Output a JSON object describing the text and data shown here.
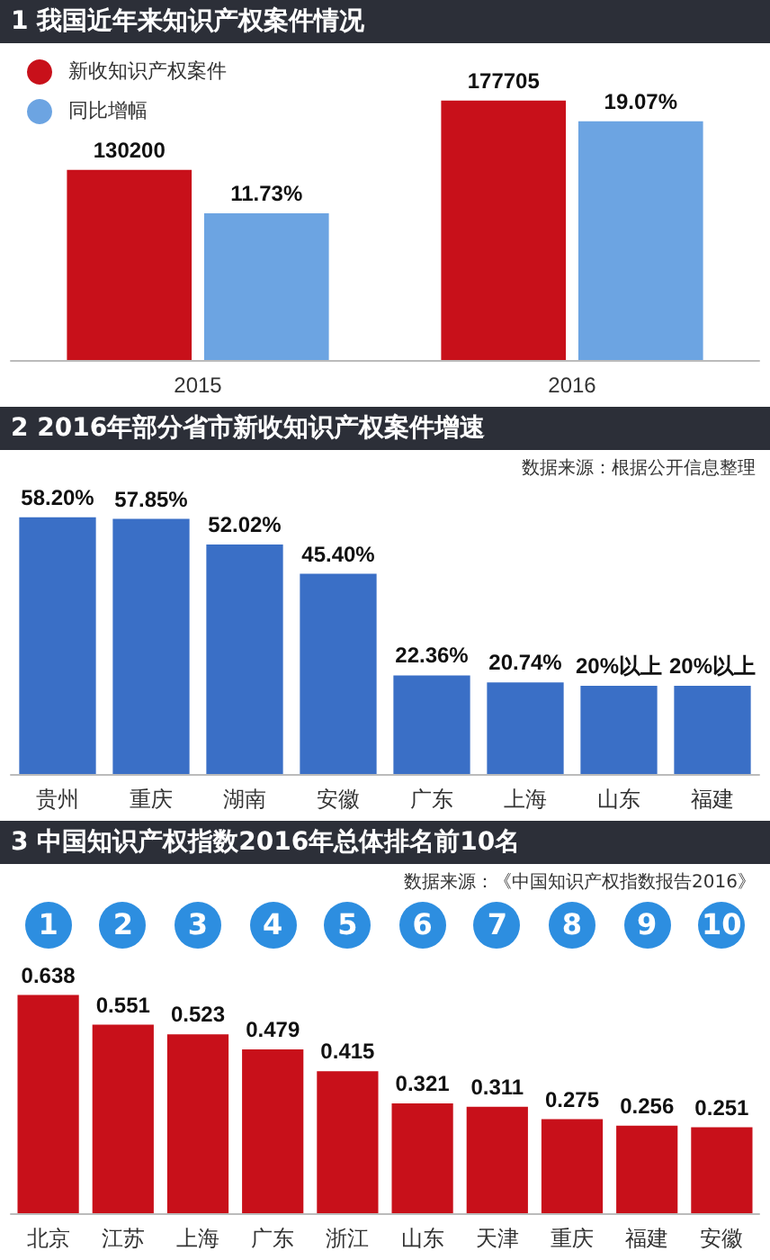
{
  "chart_data": [
    {
      "type": "bar",
      "title": "1 我国近年来知识产权案件情况",
      "categories": [
        "2015",
        "2016"
      ],
      "series": [
        {
          "name": "新收知识产权案件",
          "color": "#c8101a",
          "values": [
            130200,
            177705
          ],
          "value_labels": [
            "130200",
            "177705"
          ]
        },
        {
          "name": "同比增幅",
          "color": "#6ca4e2",
          "values": [
            11.73,
            19.07
          ],
          "axis": "y2",
          "value_labels": [
            "11.73%",
            "19.07%"
          ]
        }
      ],
      "tick_labels": "x",
      "legend": "top left",
      "grid": false
    },
    {
      "type": "bar",
      "title": "2 2016年部分省市新收知识产权案件增速",
      "annotations": [
        "数据来源：根据公开信息整理"
      ],
      "categories": [
        "贵州",
        "重庆",
        "湖南",
        "安徽",
        "广东",
        "上海",
        "山东",
        "福建"
      ],
      "values": [
        58.2,
        57.85,
        52.02,
        45.4,
        22.36,
        20.74,
        20,
        20
      ],
      "color": "#3a6fc6",
      "value_labels": [
        "58.20%",
        "57.85%",
        "52.02%",
        "45.40%",
        "22.36%",
        "20.74%",
        "20%以上",
        "20%以上"
      ],
      "tick_labels": "x",
      "grid": false,
      "legend": false
    },
    {
      "type": "bar",
      "title": "3 中国知识产权指数2016年总体排名前10名",
      "annotations": [
        "数据来源：《中国知识产权指数报告2016》",
        "1",
        "2",
        "3",
        "4",
        "5",
        "6",
        "7",
        "8",
        "9",
        "10"
      ],
      "categories": [
        "北京",
        "江苏",
        "上海",
        "广东",
        "浙江",
        "山东",
        "天津",
        "重庆",
        "福建",
        "安徽"
      ],
      "values": [
        0.638,
        0.551,
        0.523,
        0.479,
        0.415,
        0.321,
        0.311,
        0.275,
        0.256,
        0.251
      ],
      "color": "#c8101a",
      "data_labels": true,
      "tick_labels": "x",
      "grid": false,
      "legend": false
    }
  ]
}
